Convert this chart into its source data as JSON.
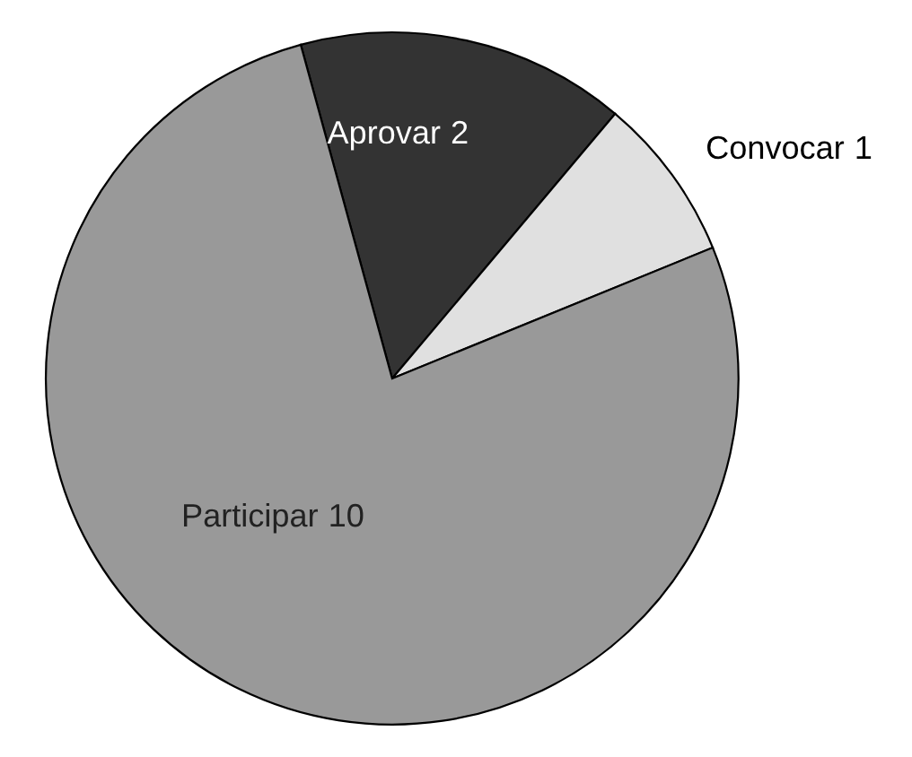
{
  "chart_data": {
    "type": "pie",
    "categories": [
      "Aprovar",
      "Convocar",
      "Participar"
    ],
    "values": [
      2,
      1,
      10
    ],
    "colors": [
      "#333333",
      "#e0e0e0",
      "#999999"
    ],
    "data_labels": true
  }
}
